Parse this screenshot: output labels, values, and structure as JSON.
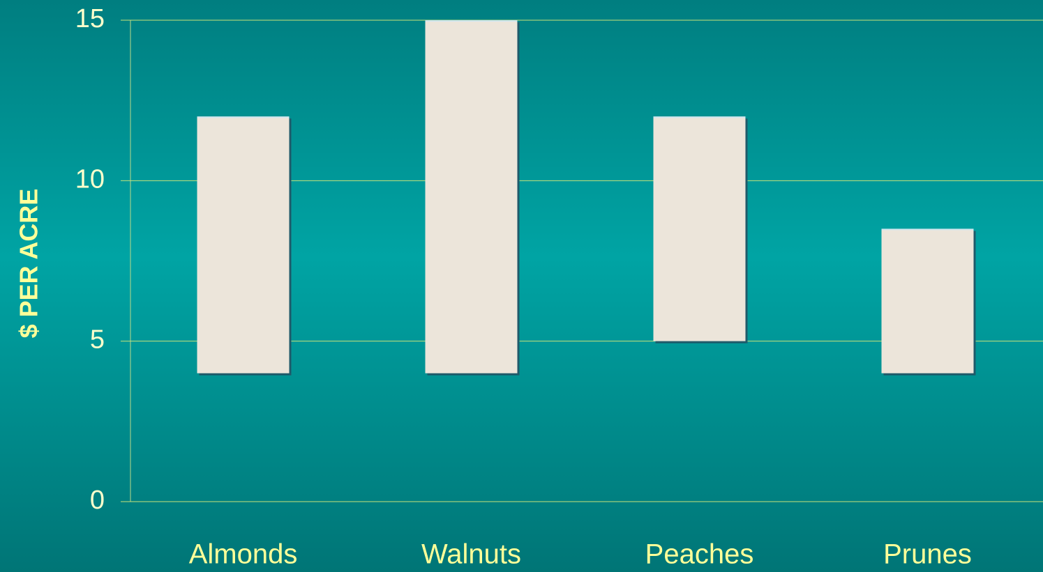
{
  "chart_data": {
    "type": "range_bar",
    "y_label": "$ PER ACRE",
    "categories": [
      "Almonds",
      "Walnuts",
      "Peaches",
      "Prunes"
    ],
    "low": [
      4,
      4,
      5,
      4
    ],
    "high": [
      12,
      15,
      12,
      8.5
    ],
    "color": "#ece5da",
    "ylim": [
      0,
      15
    ],
    "yticks": [
      0,
      5,
      10,
      15
    ],
    "grid": true
  }
}
